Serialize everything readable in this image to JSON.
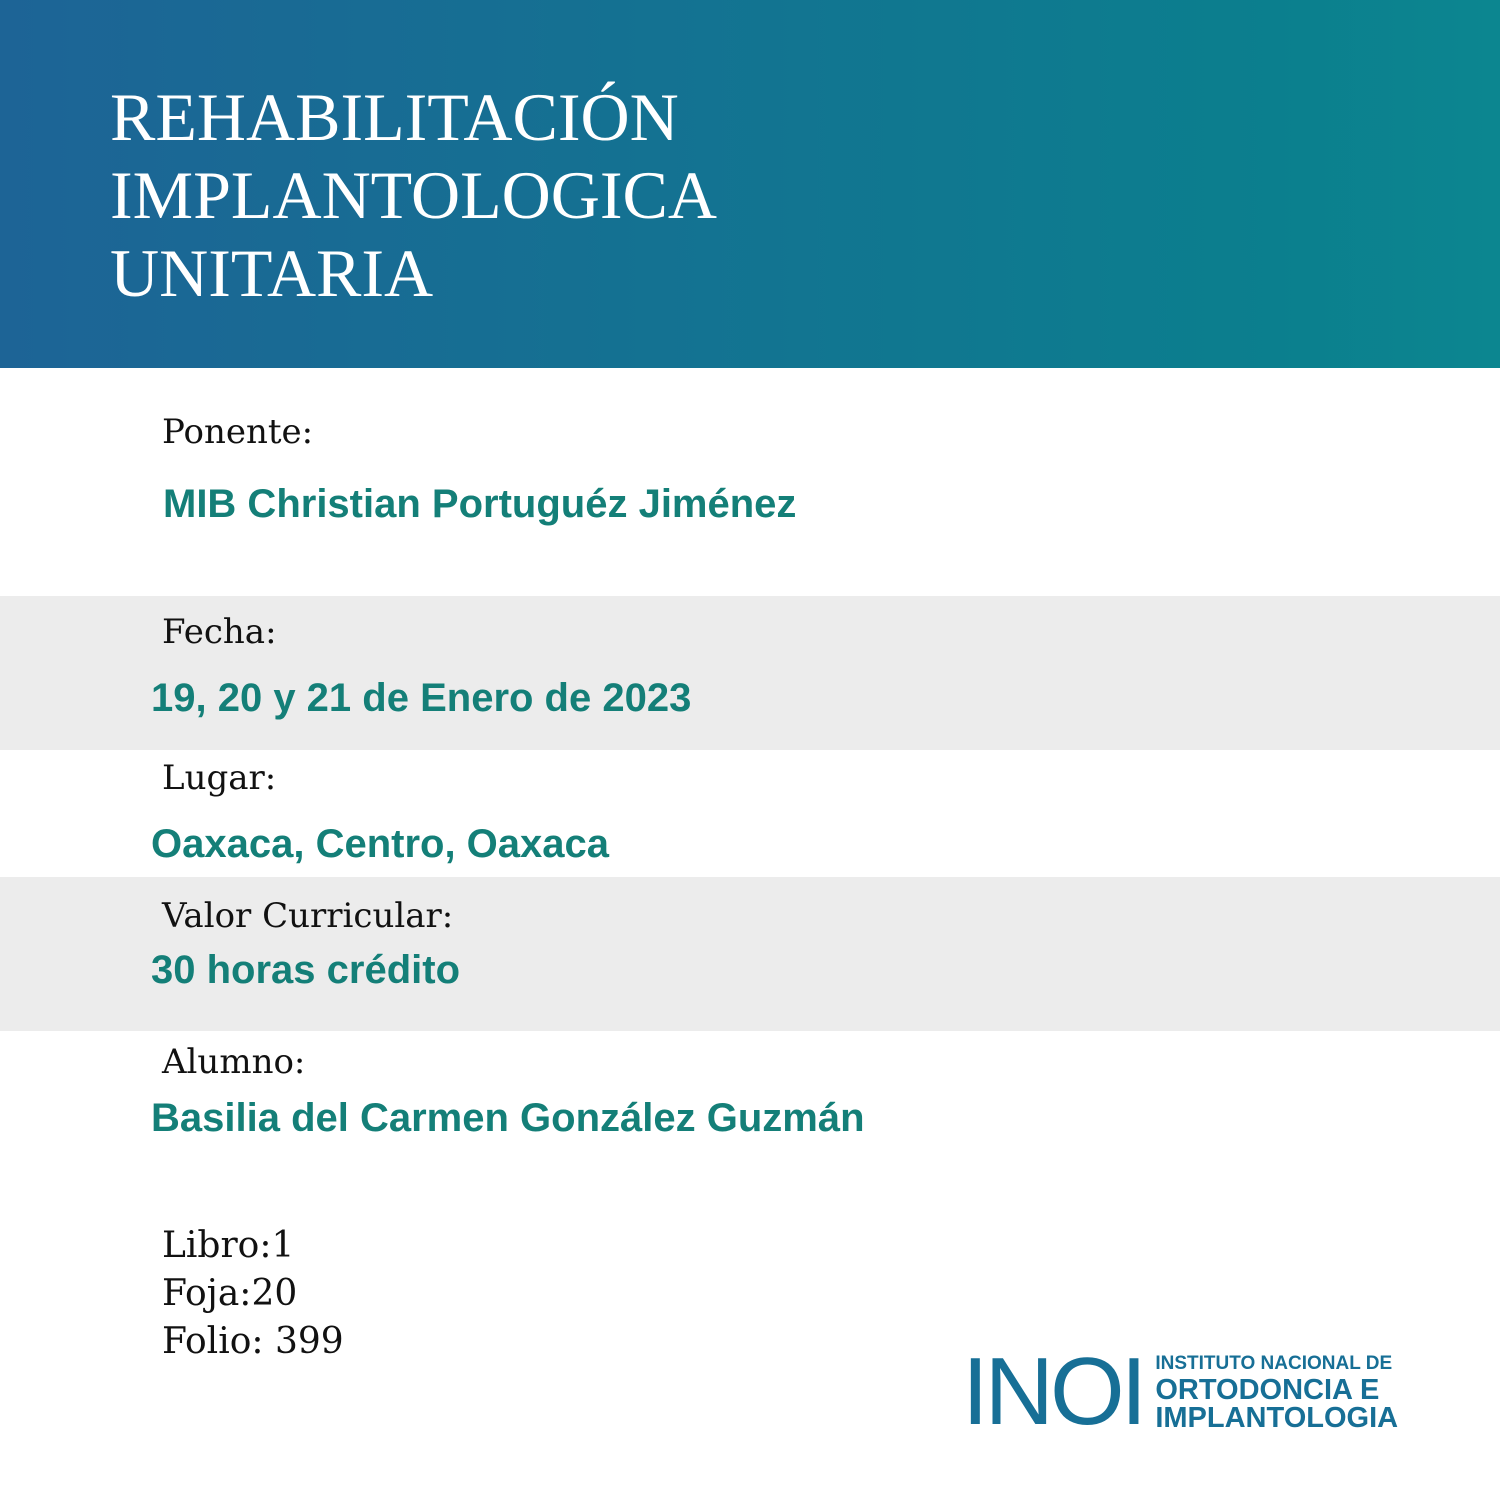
{
  "header": {
    "title_lines": [
      "REHABILITACIÓN",
      "IMPLANTOLOGICA",
      "UNITARIA"
    ]
  },
  "fields": [
    {
      "label": "Ponente:",
      "value": "MIB Christian Portuguéz Jiménez"
    },
    {
      "label": "Fecha:",
      "value": "19, 20 y 21 de Enero de 2023"
    },
    {
      "label": "Lugar:",
      "value": "Oaxaca, Centro, Oaxaca"
    },
    {
      "label": "Valor Curricular:",
      "value": "30 horas crédito"
    },
    {
      "label": "Alumno:",
      "value": "Basilia del Carmen González Guzmán"
    }
  ],
  "record": [
    "Libro:1",
    "Foja:20",
    "Folio: 399"
  ],
  "logo": {
    "mark": "INOI",
    "lines": [
      "INSTITUTO NACIONAL DE",
      "ORTODONCIA E",
      "IMPLANTOLOGIA"
    ]
  }
}
